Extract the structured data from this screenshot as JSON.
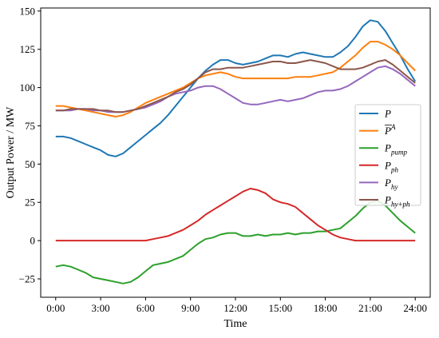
{
  "chart_data": {
    "type": "line",
    "xlabel": "Time",
    "ylabel": "Output Power / MW",
    "xlim": [
      -1,
      25
    ],
    "ylim": [
      -37,
      152
    ],
    "xticks": [
      {
        "value": 0,
        "label": "0:00"
      },
      {
        "value": 3,
        "label": "3:00"
      },
      {
        "value": 6,
        "label": "6:00"
      },
      {
        "value": 9,
        "label": "9:00"
      },
      {
        "value": 12,
        "label": "12:00"
      },
      {
        "value": 15,
        "label": "15:00"
      },
      {
        "value": 18,
        "label": "18:00"
      },
      {
        "value": 21,
        "label": "21:00"
      },
      {
        "value": 24,
        "label": "24:00"
      }
    ],
    "yticks": [
      {
        "value": -25,
        "label": "−25"
      },
      {
        "value": 0,
        "label": "0"
      },
      {
        "value": 25,
        "label": "25"
      },
      {
        "value": 50,
        "label": "50"
      },
      {
        "value": 75,
        "label": "75"
      },
      {
        "value": 100,
        "label": "100"
      },
      {
        "value": 125,
        "label": "125"
      },
      {
        "value": 150,
        "label": "150"
      }
    ],
    "grid": false,
    "legend_position": "right",
    "series": [
      {
        "name": "P",
        "sub": "",
        "sup": "",
        "overline": false,
        "color": "#1f77b4",
        "x": [
          0,
          0.5,
          1,
          1.5,
          2,
          2.5,
          3,
          3.5,
          4,
          4.5,
          5,
          5.5,
          6,
          6.5,
          7,
          7.5,
          8,
          8.5,
          9,
          9.5,
          10,
          10.5,
          11,
          11.5,
          12,
          12.5,
          13,
          13.5,
          14,
          14.5,
          15,
          15.5,
          16,
          16.5,
          17,
          17.5,
          18,
          18.5,
          19,
          19.5,
          20,
          20.5,
          21,
          21.5,
          22,
          22.5,
          23,
          23.5,
          24
        ],
        "values": [
          68,
          68,
          67,
          65,
          63,
          61,
          59,
          56,
          55,
          57,
          61,
          65,
          69,
          73,
          77,
          82,
          88,
          94,
          100,
          106,
          111,
          115,
          118,
          118,
          116,
          115,
          116,
          117,
          119,
          121,
          121,
          120,
          122,
          123,
          122,
          121,
          120,
          120,
          123,
          127,
          133,
          140,
          144,
          143,
          137,
          129,
          121,
          112,
          104
        ]
      },
      {
        "name": "P",
        "sub": "",
        "sup": "A",
        "overline": true,
        "color": "#ff7f0e",
        "x": [
          0,
          0.5,
          1,
          1.5,
          2,
          2.5,
          3,
          3.5,
          4,
          4.5,
          5,
          5.5,
          6,
          6.5,
          7,
          7.5,
          8,
          8.5,
          9,
          9.5,
          10,
          10.5,
          11,
          11.5,
          12,
          12.5,
          13,
          13.5,
          14,
          14.5,
          15,
          15.5,
          16,
          16.5,
          17,
          17.5,
          18,
          18.5,
          19,
          19.5,
          20,
          20.5,
          21,
          21.5,
          22,
          22.5,
          23,
          23.5,
          24
        ],
        "values": [
          88,
          88,
          87,
          86,
          85,
          84,
          83,
          82,
          81,
          82,
          84,
          87,
          90,
          92,
          94,
          96,
          98,
          100,
          103,
          106,
          108,
          109,
          110,
          109,
          107,
          106,
          106,
          106,
          106,
          106,
          106,
          106,
          107,
          107,
          107,
          108,
          109,
          110,
          113,
          117,
          121,
          126,
          130,
          130,
          128,
          125,
          121,
          116,
          111
        ]
      },
      {
        "name": "P",
        "sub": "pump",
        "sup": "",
        "overline": false,
        "color": "#2ca02c",
        "x": [
          0,
          0.5,
          1,
          1.5,
          2,
          2.5,
          3,
          3.5,
          4,
          4.5,
          5,
          5.5,
          6,
          6.5,
          7,
          7.5,
          8,
          8.5,
          9,
          9.5,
          10,
          10.5,
          11,
          11.5,
          12,
          12.5,
          13,
          13.5,
          14,
          14.5,
          15,
          15.5,
          16,
          16.5,
          17,
          17.5,
          18,
          18.5,
          19,
          19.5,
          20,
          20.5,
          21,
          21.5,
          22,
          22.5,
          23,
          23.5,
          24
        ],
        "values": [
          -17,
          -16,
          -17,
          -19,
          -21,
          -24,
          -25,
          -26,
          -27,
          -28,
          -27,
          -24,
          -20,
          -16,
          -15,
          -14,
          -12,
          -10,
          -6,
          -2,
          1,
          2,
          4,
          5,
          5,
          3,
          3,
          4,
          3,
          4,
          4,
          5,
          4,
          5,
          5,
          6,
          6,
          7,
          8,
          12,
          16,
          21,
          25,
          26,
          23,
          18,
          13,
          9,
          5
        ]
      },
      {
        "name": "P",
        "sub": "ph",
        "sup": "",
        "overline": false,
        "color": "#d62728",
        "x": [
          0,
          0.5,
          1,
          1.5,
          2,
          2.5,
          3,
          3.5,
          4,
          4.5,
          5,
          5.5,
          6,
          6.5,
          7,
          7.5,
          8,
          8.5,
          9,
          9.5,
          10,
          10.5,
          11,
          11.5,
          12,
          12.5,
          13,
          13.5,
          14,
          14.5,
          15,
          15.5,
          16,
          16.5,
          17,
          17.5,
          18,
          18.5,
          19,
          19.5,
          20,
          20.5,
          21,
          21.5,
          22,
          22.5,
          23,
          23.5,
          24
        ],
        "values": [
          0,
          0,
          0,
          0,
          0,
          0,
          0,
          0,
          0,
          0,
          0,
          0,
          0,
          1,
          2,
          3,
          5,
          7,
          10,
          13,
          17,
          20,
          23,
          26,
          29,
          32,
          34,
          33,
          31,
          27,
          25,
          24,
          22,
          18,
          14,
          10,
          7,
          4,
          2,
          1,
          0,
          0,
          0,
          0,
          0,
          0,
          0,
          0,
          0
        ]
      },
      {
        "name": "P",
        "sub": "hy",
        "sup": "",
        "overline": false,
        "color": "#9467bd",
        "x": [
          0,
          0.5,
          1,
          1.5,
          2,
          2.5,
          3,
          3.5,
          4,
          4.5,
          5,
          5.5,
          6,
          6.5,
          7,
          7.5,
          8,
          8.5,
          9,
          9.5,
          10,
          10.5,
          11,
          11.5,
          12,
          12.5,
          13,
          13.5,
          14,
          14.5,
          15,
          15.5,
          16,
          16.5,
          17,
          17.5,
          18,
          18.5,
          19,
          19.5,
          20,
          20.5,
          21,
          21.5,
          22,
          22.5,
          23,
          23.5,
          24
        ],
        "values": [
          85,
          85,
          85,
          86,
          86,
          85,
          85,
          84,
          84,
          84,
          85,
          86,
          87,
          89,
          91,
          94,
          96,
          97,
          98,
          100,
          101,
          101,
          99,
          96,
          93,
          90,
          89,
          89,
          90,
          91,
          92,
          91,
          92,
          93,
          95,
          97,
          98,
          98,
          99,
          101,
          104,
          107,
          110,
          113,
          114,
          112,
          109,
          105,
          101
        ]
      },
      {
        "name": "P",
        "sub": "hy+ph",
        "sup": "",
        "overline": false,
        "color": "#8c564b",
        "x": [
          0,
          0.5,
          1,
          1.5,
          2,
          2.5,
          3,
          3.5,
          4,
          4.5,
          5,
          5.5,
          6,
          6.5,
          7,
          7.5,
          8,
          8.5,
          9,
          9.5,
          10,
          10.5,
          11,
          11.5,
          12,
          12.5,
          13,
          13.5,
          14,
          14.5,
          15,
          15.5,
          16,
          16.5,
          17,
          17.5,
          18,
          18.5,
          19,
          19.5,
          20,
          20.5,
          21,
          21.5,
          22,
          22.5,
          23,
          23.5,
          24
        ],
        "values": [
          85,
          85,
          86,
          86,
          86,
          86,
          85,
          85,
          84,
          84,
          85,
          86,
          88,
          90,
          92,
          94,
          97,
          99,
          102,
          106,
          110,
          112,
          112,
          113,
          113,
          113,
          114,
          115,
          116,
          117,
          117,
          116,
          116,
          117,
          118,
          117,
          116,
          114,
          112,
          112,
          112,
          113,
          115,
          117,
          118,
          115,
          111,
          107,
          103
        ]
      }
    ]
  }
}
